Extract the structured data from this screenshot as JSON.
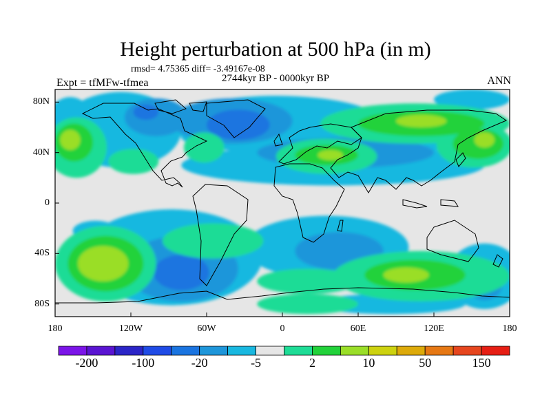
{
  "title": "Height perturbation at 500 hPa (in m)",
  "stats": "rmsd= 4.75365 diff= -3.49167e-08",
  "period": "2744kyr BP - 0000kyr BP",
  "experiment": "Expt = tfMFw-tfmea",
  "season": "ANN",
  "map": {
    "projection": "cylindrical equidistant",
    "lon_range": [
      -180,
      180
    ],
    "lat_range": [
      -90,
      90
    ],
    "lat_ticks": [
      {
        "value": 80,
        "label": "80N"
      },
      {
        "value": 40,
        "label": "40N"
      },
      {
        "value": 0,
        "label": "0"
      },
      {
        "value": -40,
        "label": "40S"
      },
      {
        "value": -80,
        "label": "80S"
      }
    ],
    "lon_ticks": [
      {
        "value": -180,
        "label": "180"
      },
      {
        "value": -120,
        "label": "120W"
      },
      {
        "value": -60,
        "label": "60W"
      },
      {
        "value": 0,
        "label": "0"
      },
      {
        "value": 60,
        "label": "60E"
      },
      {
        "value": 120,
        "label": "120E"
      },
      {
        "value": 180,
        "label": "180"
      }
    ],
    "background_color": "#e6e6e6",
    "coastline_color": "#000000"
  },
  "colorbar": {
    "colors": [
      "#7b14e8",
      "#5a14d2",
      "#2b25c7",
      "#1f4be6",
      "#1a74e0",
      "#1e96da",
      "#19b8e0",
      "#e6e6e6",
      "#1edc96",
      "#22d23a",
      "#9ade28",
      "#cdd20f",
      "#ddaa0a",
      "#e67814",
      "#e6461e",
      "#e61e14"
    ],
    "labels": [
      {
        "boundary": 1,
        "text": "-200"
      },
      {
        "boundary": 3,
        "text": "-100"
      },
      {
        "boundary": 5,
        "text": "-20"
      },
      {
        "boundary": 7,
        "text": "-5"
      },
      {
        "boundary": 9,
        "text": "2"
      },
      {
        "boundary": 11,
        "text": "10"
      },
      {
        "boundary": 13,
        "text": "50"
      },
      {
        "boundary": 15,
        "text": "150"
      }
    ]
  },
  "field_regions": [
    {
      "level": "-5",
      "color": "#19b8e0",
      "lon": -128,
      "lat": 58,
      "rx": 48,
      "ry": 30
    },
    {
      "level": "-5",
      "color": "#19b8e0",
      "lon": -5,
      "lat": 63,
      "rx": 85,
      "ry": 22
    },
    {
      "level": "-5",
      "color": "#19b8e0",
      "lon": 40,
      "lat": 52,
      "rx": 120,
      "ry": 14
    },
    {
      "level": "-5",
      "color": "#19b8e0",
      "lon": 40,
      "lat": 30,
      "rx": 120,
      "ry": 16
    },
    {
      "level": "-5",
      "color": "#19b8e0",
      "lon": 150,
      "lat": 82,
      "rx": 30,
      "ry": 8
    },
    {
      "level": "-5",
      "color": "#19b8e0",
      "lon": -168,
      "lat": 60,
      "rx": 20,
      "ry": 24
    },
    {
      "level": "-5",
      "color": "#19b8e0",
      "lon": -88,
      "lat": -43,
      "rx": 72,
      "ry": 38
    },
    {
      "level": "-5",
      "color": "#19b8e0",
      "lon": 35,
      "lat": -35,
      "rx": 65,
      "ry": 25
    },
    {
      "level": "-5",
      "color": "#19b8e0",
      "lon": 160,
      "lat": -58,
      "rx": 30,
      "ry": 26
    },
    {
      "level": "-5",
      "color": "#19b8e0",
      "lon": 85,
      "lat": -80,
      "rx": 60,
      "ry": 8
    },
    {
      "level": "-5",
      "color": "#19b8e0",
      "lon": -148,
      "lat": -22,
      "rx": 18,
      "ry": 8
    },
    {
      "level": "-20",
      "color": "#1e96da",
      "lon": -40,
      "lat": 65,
      "rx": 48,
      "ry": 18
    },
    {
      "level": "-20",
      "color": "#1e96da",
      "lon": -100,
      "lat": 68,
      "rx": 25,
      "ry": 15
    },
    {
      "level": "-20",
      "color": "#1e96da",
      "lon": 50,
      "lat": 40,
      "rx": 70,
      "ry": 12
    },
    {
      "level": "-20",
      "color": "#1e96da",
      "lon": -80,
      "lat": -52,
      "rx": 45,
      "ry": 26
    },
    {
      "level": "-20",
      "color": "#1e96da",
      "lon": 45,
      "lat": -38,
      "rx": 35,
      "ry": 15
    },
    {
      "level": "-20",
      "color": "#1e96da",
      "lon": 160,
      "lat": -62,
      "rx": 15,
      "ry": 15
    },
    {
      "level": "-50",
      "color": "#1a74e0",
      "lon": -35,
      "lat": 62,
      "rx": 25,
      "ry": 12
    },
    {
      "level": "-50",
      "color": "#1a74e0",
      "lon": -108,
      "lat": 72,
      "rx": 10,
      "ry": 6
    },
    {
      "level": "-50",
      "color": "#1a74e0",
      "lon": -80,
      "lat": -55,
      "rx": 22,
      "ry": 14
    },
    {
      "level": "2",
      "color": "#1edc96",
      "lon": -163,
      "lat": 44,
      "rx": 24,
      "ry": 24
    },
    {
      "level": "2",
      "color": "#1edc96",
      "lon": -118,
      "lat": 33,
      "rx": 20,
      "ry": 10
    },
    {
      "level": "2",
      "color": "#1edc96",
      "lon": -62,
      "lat": 44,
      "rx": 16,
      "ry": 12
    },
    {
      "level": "2",
      "color": "#1edc96",
      "lon": 35,
      "lat": 37,
      "rx": 40,
      "ry": 14
    },
    {
      "level": "2",
      "color": "#1edc96",
      "lon": 105,
      "lat": 63,
      "rx": 75,
      "ry": 16
    },
    {
      "level": "2",
      "color": "#1edc96",
      "lon": 152,
      "lat": 46,
      "rx": 30,
      "ry": 18
    },
    {
      "level": "2",
      "color": "#1edc96",
      "lon": -140,
      "lat": -48,
      "rx": 40,
      "ry": 30
    },
    {
      "level": "2",
      "color": "#1edc96",
      "lon": -55,
      "lat": -30,
      "rx": 40,
      "ry": 14
    },
    {
      "level": "2",
      "color": "#1edc96",
      "lon": 110,
      "lat": -58,
      "rx": 70,
      "ry": 20
    },
    {
      "level": "2",
      "color": "#1edc96",
      "lon": 20,
      "lat": -62,
      "rx": 40,
      "ry": 10
    },
    {
      "level": "2",
      "color": "#1edc96",
      "lon": 20,
      "lat": -80,
      "rx": 40,
      "ry": 8
    },
    {
      "level": "10",
      "color": "#22d23a",
      "lon": -165,
      "lat": 48,
      "rx": 15,
      "ry": 15
    },
    {
      "level": "10",
      "color": "#22d23a",
      "lon": 35,
      "lat": 38,
      "rx": 25,
      "ry": 8
    },
    {
      "level": "10",
      "color": "#22d23a",
      "lon": 110,
      "lat": 63,
      "rx": 50,
      "ry": 10
    },
    {
      "level": "10",
      "color": "#22d23a",
      "lon": 155,
      "lat": 47,
      "rx": 20,
      "ry": 12
    },
    {
      "level": "10",
      "color": "#22d23a",
      "lon": -140,
      "lat": -48,
      "rx": 30,
      "ry": 22
    },
    {
      "level": "10",
      "color": "#22d23a",
      "lon": 105,
      "lat": -57,
      "rx": 40,
      "ry": 12
    },
    {
      "level": "20",
      "color": "#9ade28",
      "lon": -168,
      "lat": 50,
      "rx": 8,
      "ry": 8
    },
    {
      "level": "20",
      "color": "#9ade28",
      "lon": 110,
      "lat": 65,
      "rx": 20,
      "ry": 5
    },
    {
      "level": "20",
      "color": "#9ade28",
      "lon": 160,
      "lat": 50,
      "rx": 8,
      "ry": 6
    },
    {
      "level": "20",
      "color": "#9ade28",
      "lon": -142,
      "lat": -48,
      "rx": 20,
      "ry": 14
    },
    {
      "level": "20",
      "color": "#9ade28",
      "lon": 98,
      "lat": -57,
      "rx": 18,
      "ry": 6
    },
    {
      "level": "20",
      "color": "#9ade28",
      "lon": 38,
      "lat": 38,
      "rx": 10,
      "ry": 4
    }
  ]
}
